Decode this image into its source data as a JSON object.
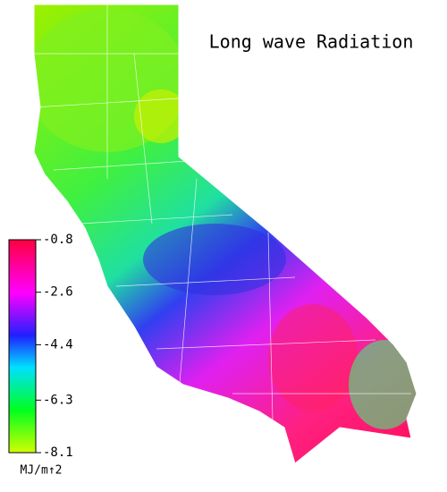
{
  "title": "Long wave Radiation",
  "colorbar": {
    "lim": [
      -8.1,
      -0.8
    ],
    "ticks": [
      -0.8,
      -2.6,
      -4.4,
      -6.3,
      -8.1
    ],
    "unit": "MJ/m↑2"
  }
}
